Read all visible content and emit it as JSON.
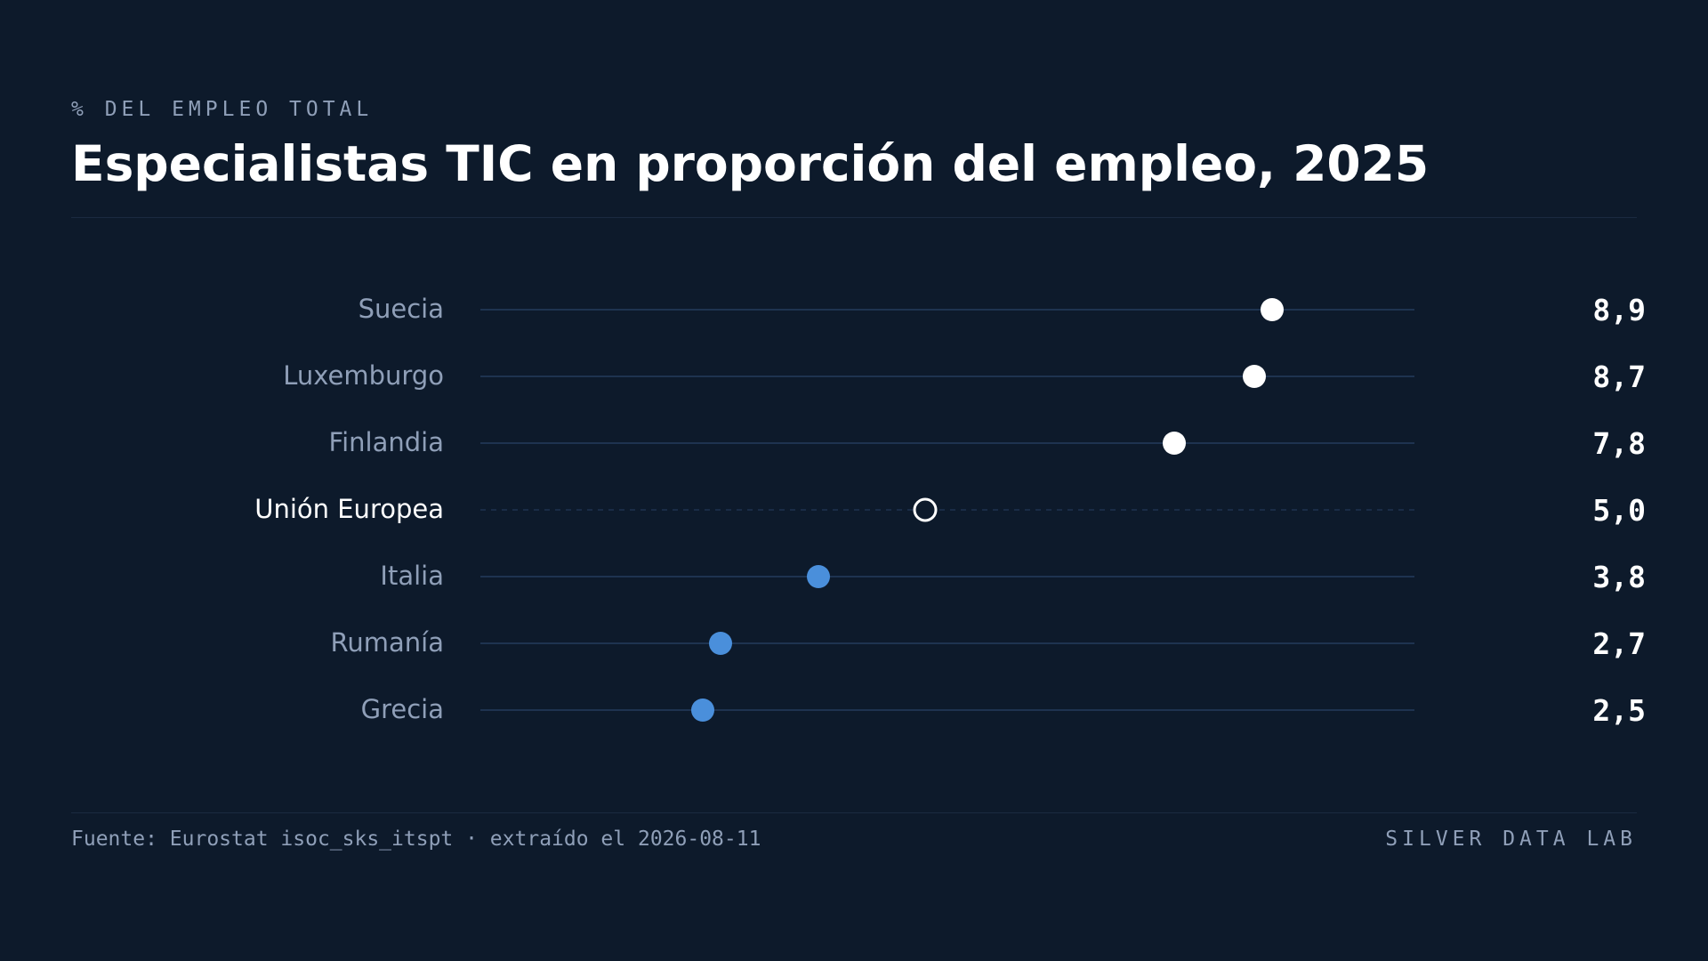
{
  "header": {
    "kicker": "% DEL EMPLEO TOTAL",
    "title": "Especialistas TIC en proporción del empleo, 2025"
  },
  "footer": {
    "source": "Fuente: Eurostat isoc_sks_itspt · extraído el 2026-08-11",
    "brand": "SILVER DATA LAB"
  },
  "colors": {
    "background": "#0d1a2b",
    "track": "#1e3350",
    "high_dot": "#ffffff",
    "low_dot": "#4a8fdb",
    "reference_dot_stroke": "#ffffff",
    "label_muted": "#8f9fb8",
    "label_highlight": "#ffffff",
    "value_text": "#ffffff"
  },
  "chart_data": {
    "type": "scatter",
    "subtype": "dot-plot",
    "title": "Especialistas TIC en proporción del empleo, 2025",
    "unit": "% del empleo total",
    "xlim": [
      0,
      10.5
    ],
    "grid": false,
    "categories": [
      "Suecia",
      "Luxemburgo",
      "Finlandia",
      "Unión Europea",
      "Italia",
      "Rumanía",
      "Grecia"
    ],
    "values": [
      8.9,
      8.7,
      7.8,
      5.0,
      3.8,
      2.7,
      2.5
    ],
    "value_labels": [
      "8,9",
      "8,7",
      "7,8",
      "5,0",
      "3,8",
      "2,7",
      "2,5"
    ],
    "reference_category": "Unión Europea",
    "groups": [
      "above",
      "above",
      "above",
      "reference",
      "below",
      "below",
      "below"
    ]
  }
}
